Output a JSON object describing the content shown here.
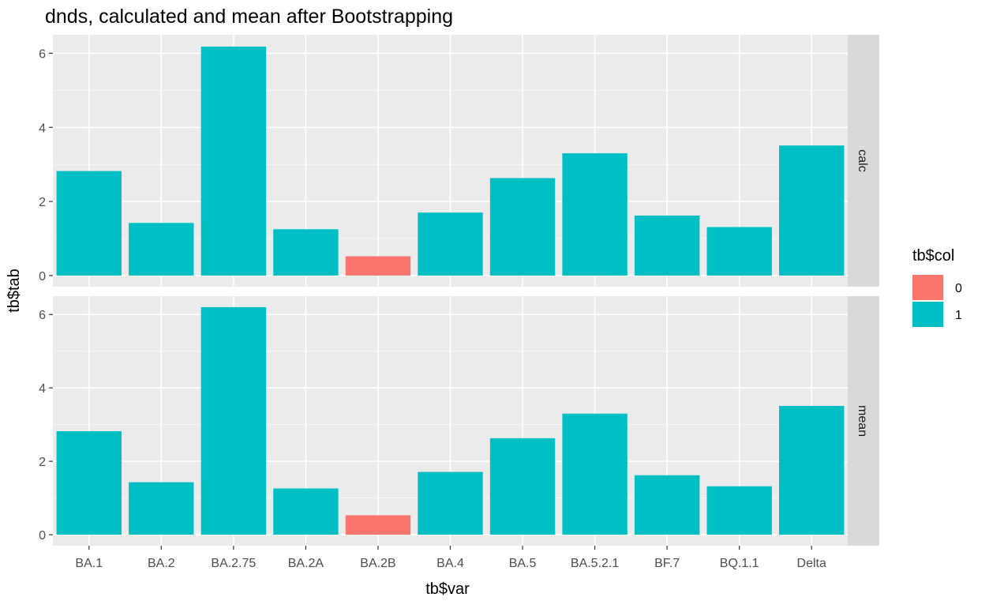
{
  "chart_data": {
    "type": "bar",
    "title": "dnds, calculated and mean after Bootstrapping",
    "xlabel": "tb$var",
    "ylabel": "tb$tab",
    "categories": [
      "BA.1",
      "BA.2",
      "BA.2.75",
      "BA.2A",
      "BA.2B",
      "BA.4",
      "BA.5",
      "BA.5.2.1",
      "BF.7",
      "BQ.1.1",
      "Delta"
    ],
    "ylim": [
      -0.3,
      6.5
    ],
    "yticks": [
      0,
      2,
      4,
      6
    ],
    "grid": true,
    "facets": [
      {
        "label": "calc",
        "values": [
          2.82,
          1.42,
          6.18,
          1.25,
          0.52,
          1.7,
          2.63,
          3.3,
          1.62,
          1.31,
          3.51
        ],
        "col": [
          "1",
          "1",
          "1",
          "1",
          "0",
          "1",
          "1",
          "1",
          "1",
          "1",
          "1"
        ]
      },
      {
        "label": "mean",
        "values": [
          2.82,
          1.43,
          6.2,
          1.26,
          0.53,
          1.71,
          2.63,
          3.3,
          1.62,
          1.32,
          3.51
        ],
        "col": [
          "1",
          "1",
          "1",
          "1",
          "0",
          "1",
          "1",
          "1",
          "1",
          "1",
          "1"
        ]
      }
    ],
    "legend": {
      "title": "tb$col",
      "placement": "right",
      "items": [
        {
          "label": "0",
          "color": "#F8766D"
        },
        {
          "label": "1",
          "color": "#00BFC4"
        }
      ]
    }
  },
  "colors": {
    "panel_bg": "#EBEBEB",
    "grid": "#FFFFFF",
    "strip_bg": "#D9D9D9",
    "tick_text": "#4D4D4D"
  }
}
